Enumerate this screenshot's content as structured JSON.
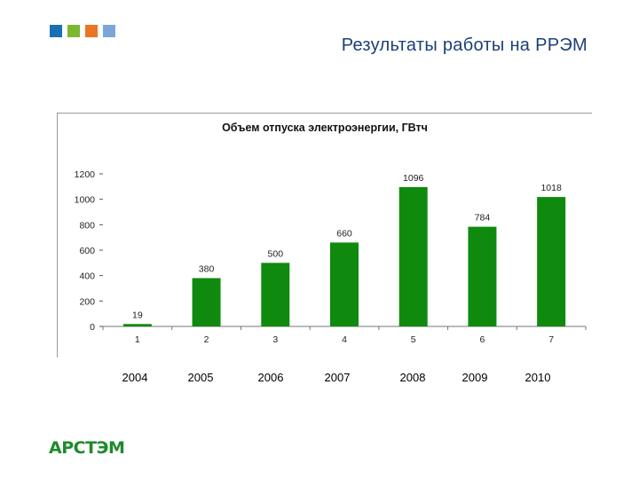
{
  "slide": {
    "title": "Результаты работы на РРЭМ",
    "logo": "АРСТЭМ",
    "squares": [
      "#1a6fb3",
      "#7cb82f",
      "#e87722",
      "#7aa7d8"
    ]
  },
  "years": [
    "2004",
    "2005",
    "2006",
    "2007",
    "2008",
    "2009",
    "2010"
  ],
  "chart_data": {
    "type": "bar",
    "title": "Объем отпуска электроэнергии, ГВтч",
    "categories": [
      "1",
      "2",
      "3",
      "4",
      "5",
      "6",
      "7"
    ],
    "values": [
      19,
      380,
      500,
      660,
      1096,
      784,
      1018
    ],
    "ylim": [
      0,
      1200
    ],
    "yticks": [
      0,
      200,
      400,
      600,
      800,
      1000,
      1200
    ],
    "xlabel": "",
    "ylabel": "",
    "bar_color": "#0f8a0f",
    "grid": false
  }
}
